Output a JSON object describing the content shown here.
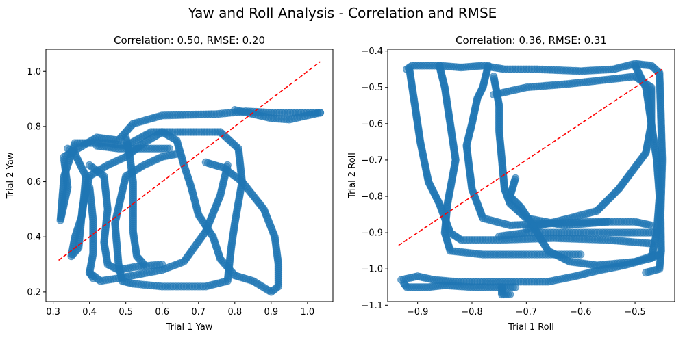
{
  "figure": {
    "suptitle": "Yaw and Roll Analysis - Correlation and RMSE"
  },
  "colors": {
    "points": "#1f77b4",
    "reference_line": "#ff0000"
  },
  "chart_data": [
    {
      "type": "scatter",
      "title": "Correlation: 0.50, RMSE: 0.20",
      "xlabel": "Trial 1 Yaw",
      "ylabel": "Trial 2 Yaw",
      "xlim": [
        0.28,
        1.07
      ],
      "ylim": [
        0.165,
        1.08
      ],
      "xticks": [
        0.3,
        0.4,
        0.5,
        0.6,
        0.7,
        0.8,
        0.9,
        1.0
      ],
      "xtick_labels": [
        "0.3",
        "0.4",
        "0.5",
        "0.6",
        "0.7",
        "0.8",
        "0.9",
        "1.0"
      ],
      "yticks": [
        0.2,
        0.4,
        0.6,
        0.8,
        1.0
      ],
      "ytick_labels": [
        "0.2",
        "0.4",
        "0.6",
        "0.8",
        "1.0"
      ],
      "reference_line": {
        "x": [
          0.315,
          1.035
        ],
        "y": [
          0.315,
          1.035
        ]
      },
      "series": [
        {
          "paths": [
            [
              [
                0.33,
                0.69
              ],
              [
                0.42,
                0.76
              ],
              [
                0.48,
                0.75
              ],
              [
                0.52,
                0.81
              ],
              [
                0.6,
                0.84
              ],
              [
                0.75,
                0.845
              ],
              [
                0.83,
                0.855
              ],
              [
                0.9,
                0.85
              ],
              [
                1.035,
                0.85
              ]
            ],
            [
              [
                0.33,
                0.68
              ],
              [
                0.34,
                0.58
              ],
              [
                0.32,
                0.46
              ],
              [
                0.33,
                0.62
              ],
              [
                0.36,
                0.74
              ],
              [
                0.45,
                0.74
              ],
              [
                0.5,
                0.73
              ],
              [
                0.57,
                0.78
              ],
              [
                0.65,
                0.78
              ],
              [
                0.76,
                0.78
              ],
              [
                0.81,
                0.72
              ],
              [
                0.82,
                0.6
              ],
              [
                0.8,
                0.45
              ],
              [
                0.79,
                0.36
              ],
              [
                0.78,
                0.24
              ],
              [
                0.72,
                0.22
              ],
              [
                0.6,
                0.22
              ],
              [
                0.52,
                0.23
              ],
              [
                0.49,
                0.24
              ],
              [
                0.48,
                0.3
              ],
              [
                0.47,
                0.45
              ],
              [
                0.5,
                0.62
              ],
              [
                0.55,
                0.66
              ],
              [
                0.6,
                0.69
              ],
              [
                0.64,
                0.7
              ]
            ],
            [
              [
                0.34,
                0.72
              ],
              [
                0.36,
                0.7
              ],
              [
                0.39,
                0.62
              ],
              [
                0.38,
                0.48
              ],
              [
                0.36,
                0.4
              ],
              [
                0.35,
                0.33
              ],
              [
                0.37,
                0.36
              ],
              [
                0.38,
                0.5
              ],
              [
                0.4,
                0.62
              ],
              [
                0.45,
                0.66
              ],
              [
                0.5,
                0.69
              ],
              [
                0.55,
                0.74
              ],
              [
                0.6,
                0.78
              ],
              [
                0.64,
                0.75
              ],
              [
                0.66,
                0.66
              ],
              [
                0.68,
                0.58
              ],
              [
                0.7,
                0.48
              ],
              [
                0.74,
                0.4
              ],
              [
                0.76,
                0.32
              ],
              [
                0.8,
                0.26
              ],
              [
                0.85,
                0.24
              ],
              [
                0.9,
                0.2
              ],
              [
                0.92,
                0.22
              ],
              [
                0.92,
                0.3
              ],
              [
                0.91,
                0.4
              ],
              [
                0.88,
                0.5
              ],
              [
                0.82,
                0.6
              ],
              [
                0.77,
                0.65
              ],
              [
                0.72,
                0.67
              ]
            ],
            [
              [
                0.4,
                0.27
              ],
              [
                0.43,
                0.24
              ],
              [
                0.48,
                0.25
              ],
              [
                0.6,
                0.28
              ],
              [
                0.66,
                0.31
              ],
              [
                0.72,
                0.42
              ],
              [
                0.76,
                0.55
              ],
              [
                0.78,
                0.66
              ]
            ],
            [
              [
                0.4,
                0.66
              ],
              [
                0.44,
                0.62
              ],
              [
                0.45,
                0.5
              ],
              [
                0.44,
                0.38
              ],
              [
                0.45,
                0.3
              ],
              [
                0.48,
                0.28
              ],
              [
                0.52,
                0.29
              ],
              [
                0.6,
                0.3
              ]
            ],
            [
              [
                0.4,
                0.58
              ],
              [
                0.41,
                0.46
              ],
              [
                0.41,
                0.34
              ],
              [
                0.4,
                0.27
              ],
              [
                0.41,
                0.25
              ]
            ],
            [
              [
                0.8,
                0.86
              ],
              [
                0.9,
                0.83
              ],
              [
                0.95,
                0.825
              ],
              [
                1.0,
                0.84
              ],
              [
                1.035,
                0.85
              ]
            ],
            [
              [
                0.5,
                0.76
              ],
              [
                0.51,
                0.7
              ],
              [
                0.52,
                0.6
              ],
              [
                0.52,
                0.5
              ],
              [
                0.52,
                0.42
              ],
              [
                0.53,
                0.33
              ],
              [
                0.55,
                0.3
              ]
            ],
            [
              [
                0.42,
                0.73
              ],
              [
                0.48,
                0.72
              ],
              [
                0.55,
                0.72
              ],
              [
                0.62,
                0.72
              ]
            ]
          ],
          "spacing": 0.0075
        }
      ]
    },
    {
      "type": "scatter",
      "title": "Correlation: 0.36, RMSE: 0.31",
      "xlabel": "Trial 1 Roll",
      "ylabel": "Trial 2 Roll",
      "xlim": [
        -0.955,
        -0.427
      ],
      "ylim": [
        -1.09,
        -0.395
      ],
      "xticks": [
        -0.9,
        -0.8,
        -0.7,
        -0.6,
        -0.5
      ],
      "xtick_labels": [
        "−0.9",
        "−0.8",
        "−0.7",
        "−0.6",
        "−0.5"
      ],
      "yticks": [
        -1.1,
        -1.0,
        -0.9,
        -0.8,
        -0.7,
        -0.6,
        -0.5,
        -0.4
      ],
      "ytick_labels": [
        "−1.1",
        "−1.0",
        "−0.9",
        "−0.8",
        "−0.7",
        "−0.6",
        "−0.5",
        "−0.4"
      ],
      "reference_line": {
        "x": [
          -0.935,
          -0.45
        ],
        "y": [
          -0.935,
          -0.45
        ]
      },
      "series": [
        {
          "paths": [
            [
              [
                -0.925,
                -1.04
              ],
              [
                -0.92,
                -1.05
              ],
              [
                -0.88,
                -1.05
              ],
              [
                -0.85,
                -1.045
              ],
              [
                -0.8,
                -1.05
              ],
              [
                -0.75,
                -1.05
              ],
              [
                -0.72,
                -1.05
              ]
            ],
            [
              [
                -0.93,
                -1.03
              ],
              [
                -0.9,
                -1.02
              ],
              [
                -0.87,
                -1.03
              ],
              [
                -0.83,
                -1.035
              ],
              [
                -0.78,
                -1.035
              ],
              [
                -0.72,
                -1.035
              ],
              [
                -0.66,
                -1.035
              ],
              [
                -0.61,
                -1.02
              ],
              [
                -0.57,
                -1.005
              ],
              [
                -0.52,
                -0.99
              ],
              [
                -0.47,
                -0.97
              ],
              [
                -0.455,
                -0.96
              ]
            ],
            [
              [
                -0.92,
                -0.45
              ],
              [
                -0.91,
                -0.44
              ],
              [
                -0.86,
                -0.44
              ],
              [
                -0.82,
                -0.445
              ],
              [
                -0.78,
                -0.44
              ],
              [
                -0.74,
                -0.45
              ],
              [
                -0.68,
                -0.45
              ],
              [
                -0.6,
                -0.455
              ],
              [
                -0.54,
                -0.45
              ],
              [
                -0.5,
                -0.435
              ],
              [
                -0.47,
                -0.44
              ],
              [
                -0.455,
                -0.46
              ],
              [
                -0.453,
                -0.55
              ],
              [
                -0.45,
                -0.7
              ],
              [
                -0.453,
                -0.85
              ],
              [
                -0.452,
                -0.95
              ],
              [
                -0.455,
                -1.0
              ],
              [
                -0.48,
                -1.01
              ]
            ],
            [
              [
                -0.86,
                -0.44
              ],
              [
                -0.85,
                -0.5
              ],
              [
                -0.84,
                -0.6
              ],
              [
                -0.83,
                -0.7
              ],
              [
                -0.845,
                -0.82
              ],
              [
                -0.85,
                -0.9
              ],
              [
                -0.84,
                -0.95
              ],
              [
                -0.78,
                -0.96
              ],
              [
                -0.7,
                -0.96
              ],
              [
                -0.6,
                -0.96
              ]
            ],
            [
              [
                -0.915,
                -0.45
              ],
              [
                -0.905,
                -0.55
              ],
              [
                -0.895,
                -0.65
              ],
              [
                -0.88,
                -0.76
              ],
              [
                -0.86,
                -0.82
              ],
              [
                -0.84,
                -0.9
              ],
              [
                -0.82,
                -0.92
              ],
              [
                -0.75,
                -0.92
              ],
              [
                -0.65,
                -0.915
              ],
              [
                -0.55,
                -0.92
              ],
              [
                -0.47,
                -0.93
              ]
            ],
            [
              [
                -0.77,
                -0.44
              ],
              [
                -0.78,
                -0.5
              ],
              [
                -0.79,
                -0.53
              ],
              [
                -0.8,
                -0.6
              ],
              [
                -0.81,
                -0.66
              ],
              [
                -0.805,
                -0.72
              ],
              [
                -0.8,
                -0.78
              ],
              [
                -0.78,
                -0.86
              ],
              [
                -0.73,
                -0.88
              ],
              [
                -0.66,
                -0.875
              ],
              [
                -0.58,
                -0.87
              ],
              [
                -0.5,
                -0.87
              ],
              [
                -0.47,
                -0.88
              ]
            ],
            [
              [
                -0.76,
                -0.47
              ],
              [
                -0.75,
                -0.55
              ],
              [
                -0.75,
                -0.62
              ],
              [
                -0.745,
                -0.7
              ],
              [
                -0.74,
                -0.78
              ],
              [
                -0.73,
                -0.82
              ],
              [
                -0.7,
                -0.86
              ],
              [
                -0.63,
                -0.88
              ],
              [
                -0.55,
                -0.87
              ]
            ],
            [
              [
                -0.76,
                -0.52
              ],
              [
                -0.7,
                -0.5
              ],
              [
                -0.62,
                -0.49
              ],
              [
                -0.56,
                -0.48
              ],
              [
                -0.5,
                -0.47
              ],
              [
                -0.47,
                -0.5
              ],
              [
                -0.47,
                -0.6
              ],
              [
                -0.48,
                -0.68
              ],
              [
                -0.5,
                -0.72
              ],
              [
                -0.53,
                -0.78
              ],
              [
                -0.57,
                -0.84
              ],
              [
                -0.62,
                -0.86
              ],
              [
                -0.7,
                -0.89
              ]
            ],
            [
              [
                -0.72,
                -0.75
              ],
              [
                -0.73,
                -0.8
              ],
              [
                -0.71,
                -0.83
              ],
              [
                -0.68,
                -0.9
              ],
              [
                -0.66,
                -0.95
              ],
              [
                -0.62,
                -0.98
              ],
              [
                -0.57,
                -0.99
              ],
              [
                -0.5,
                -0.98
              ],
              [
                -0.46,
                -0.96
              ]
            ],
            [
              [
                -0.75,
                -0.91
              ],
              [
                -0.7,
                -0.9
              ],
              [
                -0.62,
                -0.9
              ],
              [
                -0.56,
                -0.9
              ],
              [
                -0.5,
                -0.9
              ],
              [
                -0.46,
                -0.9
              ]
            ],
            [
              [
                -0.5,
                -0.44
              ],
              [
                -0.48,
                -0.5
              ],
              [
                -0.47,
                -0.6
              ],
              [
                -0.46,
                -0.7
              ],
              [
                -0.455,
                -0.8
              ],
              [
                -0.46,
                -0.9
              ],
              [
                -0.47,
                -0.97
              ]
            ],
            [
              [
                -0.745,
                -1.05
              ],
              [
                -0.745,
                -1.07
              ],
              [
                -0.73,
                -1.07
              ]
            ]
          ],
          "spacing": 0.005
        }
      ]
    }
  ]
}
